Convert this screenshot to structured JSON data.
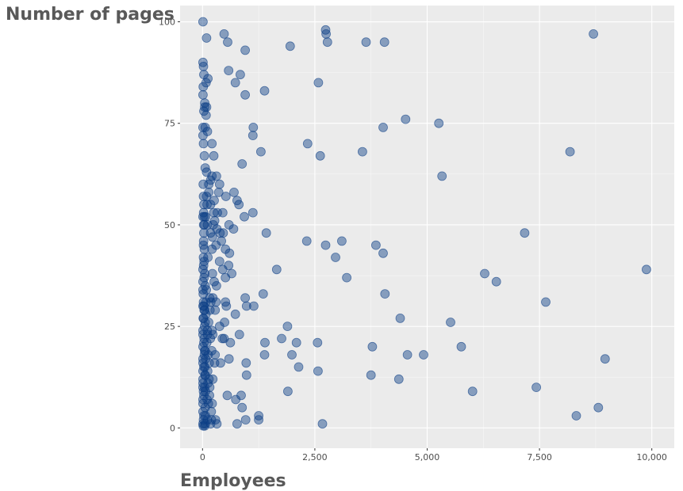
{
  "chart_data": {
    "type": "scatter",
    "xlabel": "Employees",
    "ylabel": "Number of pages",
    "xlim": [
      -500,
      10500
    ],
    "ylim": [
      -5,
      104
    ],
    "x_ticks": [
      0,
      2500,
      5000,
      7500,
      10000
    ],
    "x_tick_labels": [
      "0",
      "2,500",
      "5,000",
      "7,500",
      "10,000"
    ],
    "y_ticks": [
      0,
      25,
      50,
      75,
      100
    ],
    "y_tick_labels": [
      "0",
      "25",
      "50",
      "75",
      "100"
    ],
    "grid": true,
    "point_color": "#0b3e85",
    "panel_background": "#ebebeb",
    "grid_color": "#ffffff",
    "points": [
      [
        2740,
        98
      ],
      [
        2750,
        97
      ],
      [
        8700,
        97
      ],
      [
        480,
        97
      ],
      [
        90,
        96
      ],
      [
        3640,
        95
      ],
      [
        4050,
        95
      ],
      [
        2780,
        95
      ],
      [
        560,
        95
      ],
      [
        1950,
        94
      ],
      [
        950,
        93
      ],
      [
        10,
        100
      ],
      [
        10,
        90
      ],
      [
        20,
        89
      ],
      [
        30,
        87
      ],
      [
        580,
        88
      ],
      [
        840,
        87
      ],
      [
        120,
        86
      ],
      [
        80,
        85
      ],
      [
        2580,
        85
      ],
      [
        730,
        85
      ],
      [
        10,
        82
      ],
      [
        950,
        82
      ],
      [
        1380,
        83
      ],
      [
        50,
        79
      ],
      [
        90,
        79
      ],
      [
        80,
        77
      ],
      [
        4520,
        76
      ],
      [
        5260,
        75
      ],
      [
        10,
        74
      ],
      [
        60,
        74
      ],
      [
        4020,
        74
      ],
      [
        1130,
        74
      ],
      [
        10,
        72
      ],
      [
        110,
        73
      ],
      [
        1120,
        72
      ],
      [
        210,
        70
      ],
      [
        2340,
        70
      ],
      [
        3560,
        68
      ],
      [
        8180,
        68
      ],
      [
        1300,
        68
      ],
      [
        40,
        67
      ],
      [
        250,
        67
      ],
      [
        2620,
        67
      ],
      [
        60,
        64
      ],
      [
        880,
        65
      ],
      [
        90,
        63
      ],
      [
        210,
        62
      ],
      [
        310,
        62
      ],
      [
        180,
        61
      ],
      [
        140,
        60
      ],
      [
        380,
        60
      ],
      [
        5330,
        62
      ],
      [
        700,
        58
      ],
      [
        20,
        57
      ],
      [
        90,
        57
      ],
      [
        520,
        57
      ],
      [
        770,
        56
      ],
      [
        810,
        55
      ],
      [
        30,
        55
      ],
      [
        180,
        55
      ],
      [
        250,
        53
      ],
      [
        450,
        53
      ],
      [
        1120,
        53
      ],
      [
        10,
        52
      ],
      [
        40,
        52
      ],
      [
        930,
        52
      ],
      [
        110,
        50
      ],
      [
        270,
        51
      ],
      [
        240,
        50
      ],
      [
        590,
        50
      ],
      [
        320,
        49
      ],
      [
        690,
        49
      ],
      [
        460,
        48
      ],
      [
        390,
        48
      ],
      [
        30,
        48
      ],
      [
        180,
        48
      ],
      [
        1420,
        48
      ],
      [
        7170,
        48
      ],
      [
        2320,
        46
      ],
      [
        3100,
        46
      ],
      [
        3860,
        45
      ],
      [
        2740,
        45
      ],
      [
        4020,
        43
      ],
      [
        40,
        44
      ],
      [
        210,
        44
      ],
      [
        510,
        44
      ],
      [
        20,
        42
      ],
      [
        120,
        42
      ],
      [
        2960,
        42
      ],
      [
        580,
        40
      ],
      [
        1650,
        39
      ],
      [
        450,
        39
      ],
      [
        10,
        39
      ],
      [
        50,
        38
      ],
      [
        650,
        38
      ],
      [
        6280,
        38
      ],
      [
        3210,
        37
      ],
      [
        510,
        37
      ],
      [
        6540,
        36
      ],
      [
        60,
        35
      ],
      [
        310,
        35
      ],
      [
        9880,
        39
      ],
      [
        10,
        34
      ],
      [
        1350,
        33
      ],
      [
        4060,
        33
      ],
      [
        20,
        31
      ],
      [
        160,
        32
      ],
      [
        230,
        32
      ],
      [
        510,
        31
      ],
      [
        300,
        31
      ],
      [
        950,
        32
      ],
      [
        7640,
        31
      ],
      [
        30,
        30
      ],
      [
        980,
        30
      ],
      [
        1140,
        30
      ],
      [
        530,
        30
      ],
      [
        50,
        29
      ],
      [
        280,
        29
      ],
      [
        730,
        28
      ],
      [
        4400,
        27
      ],
      [
        5520,
        26
      ],
      [
        20,
        27
      ],
      [
        60,
        26
      ],
      [
        490,
        26
      ],
      [
        380,
        25
      ],
      [
        1890,
        25
      ],
      [
        210,
        24
      ],
      [
        10,
        23
      ],
      [
        110,
        23
      ],
      [
        230,
        23
      ],
      [
        1760,
        22
      ],
      [
        440,
        22
      ],
      [
        820,
        23
      ],
      [
        480,
        22
      ],
      [
        30,
        21
      ],
      [
        1390,
        21
      ],
      [
        2090,
        21
      ],
      [
        620,
        21
      ],
      [
        2560,
        21
      ],
      [
        3780,
        20
      ],
      [
        5760,
        20
      ],
      [
        60,
        19
      ],
      [
        40,
        18
      ],
      [
        1380,
        18
      ],
      [
        1990,
        18
      ],
      [
        4560,
        18
      ],
      [
        4920,
        18
      ],
      [
        280,
        18
      ],
      [
        10,
        17
      ],
      [
        70,
        17
      ],
      [
        8960,
        17
      ],
      [
        590,
        17
      ],
      [
        150,
        16
      ],
      [
        270,
        16
      ],
      [
        400,
        16
      ],
      [
        970,
        16
      ],
      [
        2140,
        15
      ],
      [
        30,
        15
      ],
      [
        10,
        14
      ],
      [
        2570,
        14
      ],
      [
        3750,
        13
      ],
      [
        980,
        13
      ],
      [
        60,
        13
      ],
      [
        230,
        12
      ],
      [
        4370,
        12
      ],
      [
        120,
        11
      ],
      [
        10,
        11
      ],
      [
        50,
        10
      ],
      [
        160,
        10
      ],
      [
        7430,
        10
      ],
      [
        20,
        9
      ],
      [
        1900,
        9
      ],
      [
        6010,
        9
      ],
      [
        30,
        8
      ],
      [
        550,
        8
      ],
      [
        860,
        8
      ],
      [
        100,
        7
      ],
      [
        10,
        7
      ],
      [
        740,
        7
      ],
      [
        880,
        5
      ],
      [
        8810,
        5
      ],
      [
        60,
        5
      ],
      [
        10,
        4
      ],
      [
        1250,
        3
      ],
      [
        8320,
        3
      ],
      [
        30,
        3
      ],
      [
        20,
        2
      ],
      [
        290,
        2
      ],
      [
        960,
        2
      ],
      [
        1250,
        2
      ],
      [
        10,
        1
      ],
      [
        60,
        1
      ],
      [
        180,
        1
      ],
      [
        320,
        1
      ],
      [
        770,
        1
      ],
      [
        2670,
        1
      ],
      [
        110,
        2
      ],
      [
        200,
        2
      ],
      [
        50,
        0.5
      ],
      [
        15,
        0.5
      ],
      [
        130,
        6
      ],
      [
        10,
        36
      ],
      [
        10,
        30
      ],
      [
        10,
        24
      ],
      [
        10,
        20
      ],
      [
        10,
        16
      ],
      [
        10,
        12
      ],
      [
        10,
        10
      ],
      [
        10,
        6
      ],
      [
        15,
        33
      ],
      [
        15,
        27
      ],
      [
        25,
        40
      ],
      [
        25,
        46
      ],
      [
        25,
        50
      ],
      [
        25,
        53
      ],
      [
        35,
        41
      ],
      [
        35,
        37
      ],
      [
        35,
        29
      ],
      [
        35,
        22
      ],
      [
        45,
        25
      ],
      [
        45,
        19
      ],
      [
        55,
        15
      ],
      [
        55,
        13
      ],
      [
        65,
        9
      ],
      [
        65,
        3
      ],
      [
        75,
        28
      ],
      [
        75,
        31
      ],
      [
        85,
        34
      ],
      [
        95,
        21
      ],
      [
        105,
        24
      ],
      [
        115,
        14
      ],
      [
        125,
        18
      ],
      [
        135,
        26
      ],
      [
        145,
        12
      ],
      [
        155,
        8
      ],
      [
        165,
        29
      ],
      [
        175,
        22
      ],
      [
        185,
        31
      ],
      [
        195,
        4
      ],
      [
        205,
        19
      ],
      [
        215,
        6
      ],
      [
        20,
        45
      ],
      [
        40,
        50
      ],
      [
        70,
        52
      ],
      [
        100,
        55
      ],
      [
        140,
        58
      ],
      [
        15,
        60
      ],
      [
        20,
        70
      ],
      [
        30,
        78
      ],
      [
        50,
        80
      ],
      [
        15,
        84
      ],
      [
        260,
        56
      ],
      [
        360,
        58
      ],
      [
        330,
        53
      ],
      [
        220,
        47
      ],
      [
        420,
        46
      ],
      [
        300,
        45
      ],
      [
        600,
        43
      ],
      [
        380,
        41
      ],
      [
        220,
        38
      ],
      [
        260,
        36
      ]
    ]
  }
}
